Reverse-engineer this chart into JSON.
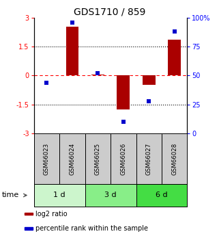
{
  "title": "GDS1710 / 859",
  "samples": [
    "GSM66023",
    "GSM66024",
    "GSM66025",
    "GSM66026",
    "GSM66027",
    "GSM66028"
  ],
  "groups": [
    {
      "label": "1 d",
      "indices": [
        0,
        1
      ],
      "color": "#ccf5cc"
    },
    {
      "label": "3 d",
      "indices": [
        2,
        3
      ],
      "color": "#88ee88"
    },
    {
      "label": "6 d",
      "indices": [
        4,
        5
      ],
      "color": "#44dd44"
    }
  ],
  "log2_ratio": [
    0.0,
    2.55,
    0.05,
    -1.75,
    -0.5,
    1.85
  ],
  "percentile_rank": [
    44,
    96,
    52,
    10,
    28,
    88
  ],
  "bar_color": "#aa0000",
  "dot_color": "#0000cc",
  "sample_bg": "#cccccc",
  "ylim_left": [
    -3,
    3
  ],
  "ylim_right": [
    0,
    100
  ],
  "yticks_left": [
    -3,
    -1.5,
    0,
    1.5,
    3
  ],
  "ytick_labels_left": [
    "-3",
    "-1.5",
    "0",
    "1.5",
    "3"
  ],
  "yticks_right": [
    0,
    25,
    50,
    75,
    100
  ],
  "ytick_labels_right": [
    "0",
    "25",
    "50",
    "75",
    "100%"
  ],
  "legend_items": [
    {
      "color": "#aa0000",
      "label": "log2 ratio"
    },
    {
      "color": "#0000cc",
      "label": "percentile rank within the sample"
    }
  ]
}
